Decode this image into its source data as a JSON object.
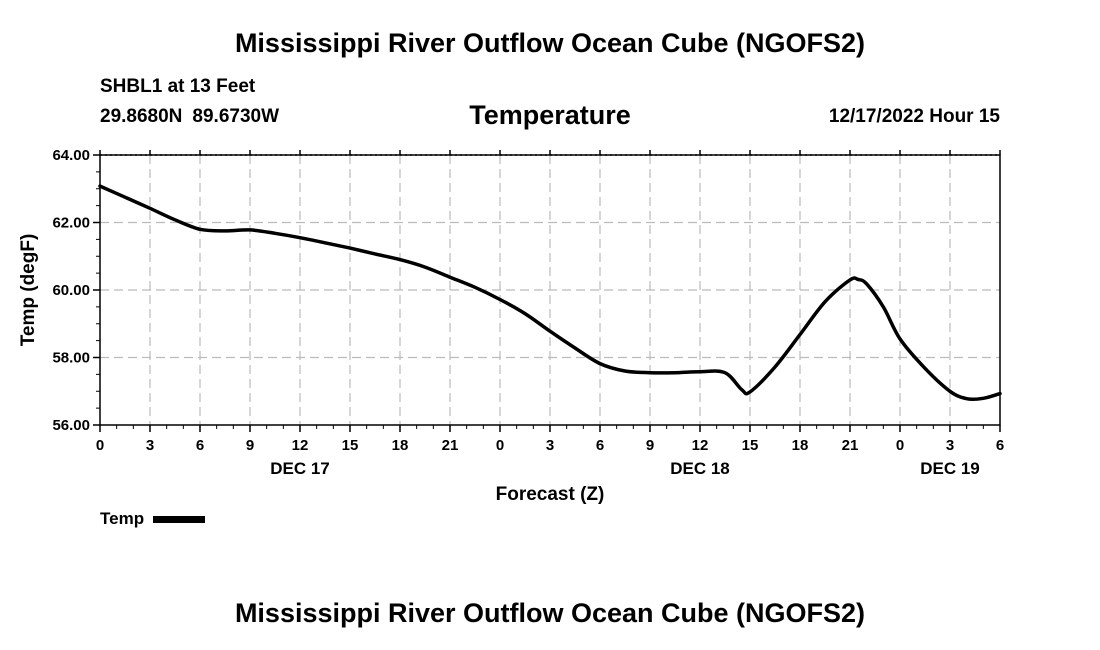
{
  "header": {
    "title": "Mississippi River Outflow Ocean Cube (NGOFS2)",
    "station": "SHBL1 at 13 Feet",
    "lat": "29.8680N",
    "lon": "89.6730W",
    "subtitle": "Temperature",
    "timestamp": "12/17/2022 Hour 15"
  },
  "footer": {
    "title": "Mississippi River Outflow Ocean Cube (NGOFS2)"
  },
  "legend": {
    "label": "Temp"
  },
  "colors": {
    "line": "#000000",
    "grid": "#bbbbbb",
    "frame": "#000000"
  },
  "chart_data": {
    "type": "line",
    "title": "Temperature",
    "xlabel": "Forecast (Z)",
    "ylabel": "Temp (degF)",
    "xlim": [
      0,
      54
    ],
    "ylim": [
      56.0,
      64.0
    ],
    "x_ticks": [
      0,
      3,
      6,
      9,
      12,
      15,
      18,
      21,
      24,
      27,
      30,
      33,
      36,
      39,
      42,
      45,
      48,
      51,
      54
    ],
    "x_tick_labels": [
      "0",
      "3",
      "6",
      "9",
      "12",
      "15",
      "18",
      "21",
      "0",
      "3",
      "6",
      "9",
      "12",
      "15",
      "18",
      "21",
      "0",
      "3",
      "6"
    ],
    "y_ticks": [
      56.0,
      58.0,
      60.0,
      62.0,
      64.0
    ],
    "y_tick_labels": [
      "56.00",
      "58.00",
      "60.00",
      "62.00",
      "64.00"
    ],
    "day_labels": [
      {
        "at": 12,
        "label": "DEC 17"
      },
      {
        "at": 36,
        "label": "DEC 18"
      },
      {
        "at": 51,
        "label": "DEC 19"
      }
    ],
    "grid": true,
    "series": [
      {
        "name": "Temp",
        "x": [
          0,
          1.5,
          3,
          4.5,
          6,
          7.5,
          9,
          10.5,
          12,
          13.5,
          15,
          16.5,
          18,
          19.5,
          21,
          22.5,
          24,
          25.5,
          27,
          28.5,
          30,
          31.5,
          33,
          34.5,
          36,
          37.5,
          38.5,
          39,
          40.5,
          42,
          43.5,
          45,
          45.5,
          46,
          47,
          48,
          49.5,
          51,
          52,
          53,
          54
        ],
        "y": [
          63.08,
          62.75,
          62.42,
          62.08,
          61.8,
          61.75,
          61.78,
          61.68,
          61.55,
          61.4,
          61.24,
          61.07,
          60.9,
          60.68,
          60.38,
          60.08,
          59.72,
          59.3,
          58.78,
          58.28,
          57.82,
          57.6,
          57.55,
          57.55,
          57.58,
          57.55,
          57.05,
          56.98,
          57.72,
          58.68,
          59.65,
          60.3,
          60.31,
          60.18,
          59.5,
          58.55,
          57.68,
          57.0,
          56.78,
          56.79,
          56.93
        ]
      }
    ]
  }
}
